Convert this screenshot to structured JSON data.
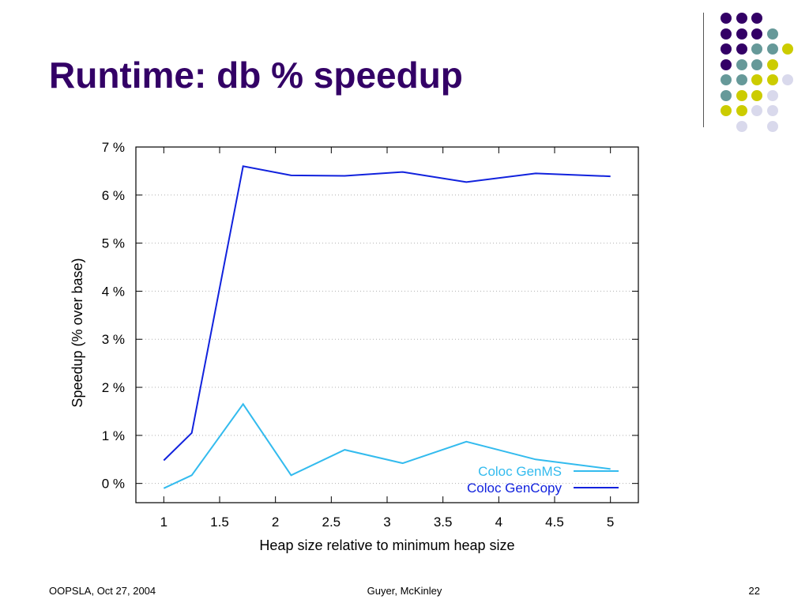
{
  "slide": {
    "title": "Runtime: db % speedup",
    "footer_left": "OOPSLA, Oct 27, 2004",
    "footer_center": "Guyer, McKinley",
    "footer_right": "22"
  },
  "decor": {
    "colors": {
      "purple": "#330066",
      "teal": "#669999",
      "yellow": "#cccc00",
      "lavender": "#d9d9ec"
    }
  },
  "chart_data": {
    "type": "line",
    "xlabel": "Heap size relative to minimum heap size",
    "ylabel": "Speedup (% over base)",
    "xlim": [
      0.75,
      5.25
    ],
    "ylim": [
      -0.4,
      7
    ],
    "xticks": [
      "1",
      "1.5",
      "2",
      "2.5",
      "3",
      "3.5",
      "4",
      "4.5",
      "5"
    ],
    "xtick_values": [
      1,
      1.5,
      2,
      2.5,
      3,
      3.5,
      4,
      4.5,
      5
    ],
    "yticks": [
      "0 %",
      "1 %",
      "2 %",
      "3 %",
      "4 %",
      "5 %",
      "6 %",
      "7 %"
    ],
    "ytick_values": [
      0,
      1,
      2,
      3,
      4,
      5,
      6,
      7
    ],
    "grid": true,
    "legend_position": "bottom-right",
    "series": [
      {
        "name": "Coloc GenMS",
        "color": "#33bbee",
        "x": [
          1,
          1.25,
          1.71,
          2.14,
          2.62,
          3.14,
          3.71,
          4.33,
          5
        ],
        "y": [
          -0.1,
          0.17,
          1.65,
          0.17,
          0.7,
          0.42,
          0.87,
          0.5,
          0.3
        ]
      },
      {
        "name": "Coloc GenCopy",
        "color": "#1122dd",
        "x": [
          1,
          1.25,
          1.71,
          2.14,
          2.62,
          3.14,
          3.71,
          4.33,
          5
        ],
        "y": [
          0.48,
          1.05,
          6.6,
          6.41,
          6.4,
          6.48,
          6.27,
          6.45,
          6.39
        ]
      }
    ]
  }
}
